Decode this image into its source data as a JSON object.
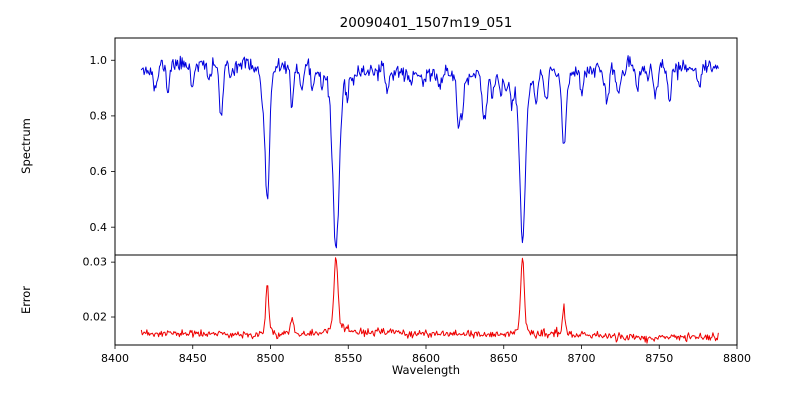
{
  "title": "20090401_1507m19_051",
  "x_axis": {
    "label": "Wavelength",
    "tick_values": [
      8400,
      8450,
      8500,
      8550,
      8600,
      8650,
      8700,
      8750,
      8800
    ],
    "tick_labels": [
      "8400",
      "8450",
      "8500",
      "8550",
      "8600",
      "8650",
      "8700",
      "8750",
      "8800"
    ],
    "lim": [
      8400,
      8800
    ]
  },
  "panels": {
    "spectrum": {
      "ylabel": "Spectrum",
      "tick_values": [
        0.4,
        0.6,
        0.8,
        1.0
      ],
      "tick_labels": [
        "0.4",
        "0.6",
        "0.8",
        "1.0"
      ],
      "ylim": [
        0.3,
        1.08
      ],
      "line_color": "#0000dd"
    },
    "error": {
      "ylabel": "Error",
      "tick_values": [
        0.02,
        0.03
      ],
      "tick_labels": [
        "0.02",
        "0.03"
      ],
      "ylim": [
        0.0149,
        0.0313
      ],
      "line_color": "#ee0000"
    }
  },
  "chart_data": [
    {
      "type": "line",
      "name": "spectrum",
      "color": "#0000dd",
      "x_range": [
        8417,
        8788
      ],
      "xlabel": "Wavelength",
      "ylabel": "Spectrum",
      "ylim": [
        0.3,
        1.08
      ],
      "continuum_level": 0.97,
      "noise_sigma": 0.013,
      "noise_seed": 11,
      "absorption_lines": [
        {
          "wavelength": 8498.0,
          "min_flux": 0.48,
          "depth": 0.49,
          "width": 1.3
        },
        {
          "wavelength": 8542.1,
          "min_flux": 0.33,
          "depth": 0.64,
          "width": 2.0
        },
        {
          "wavelength": 8662.1,
          "min_flux": 0.37,
          "depth": 0.6,
          "width": 1.8
        },
        {
          "wavelength": 8688.6,
          "min_flux": 0.75,
          "depth": 0.22,
          "width": 1.0
        }
      ],
      "weak_lines": [
        {
          "wavelength": 8434,
          "depth": 0.1,
          "width": 0.9
        },
        {
          "wavelength": 8468,
          "depth": 0.12,
          "width": 1.0
        },
        {
          "wavelength": 8514,
          "depth": 0.15,
          "width": 1.0
        },
        {
          "wavelength": 8648,
          "depth": 0.1,
          "width": 0.9
        },
        {
          "wavelength": 8717,
          "depth": 0.1,
          "width": 0.9
        },
        {
          "wavelength": 8736,
          "depth": 0.09,
          "width": 0.9
        },
        {
          "wavelength": 8757,
          "depth": 0.11,
          "width": 0.9
        }
      ],
      "random_weak_lines": {
        "count": 42,
        "depth_range": [
          0.02,
          0.1
        ],
        "width_range": [
          0.7,
          1.4
        ],
        "seed": 7
      }
    },
    {
      "type": "line",
      "name": "error",
      "color": "#ee0000",
      "x_range": [
        8417,
        8788
      ],
      "ylabel": "Error",
      "ylim": [
        0.0149,
        0.0313
      ],
      "baseline": 0.0167,
      "noise_sigma": 0.00035,
      "noise_seed": 23,
      "peaks": [
        {
          "wavelength": 8498.0,
          "value": 0.025,
          "width": 0.9
        },
        {
          "wavelength": 8514.0,
          "value": 0.0193,
          "width": 0.9
        },
        {
          "wavelength": 8542.1,
          "value": 0.029,
          "width": 1.2
        },
        {
          "wavelength": 8662.1,
          "value": 0.0295,
          "width": 1.1
        },
        {
          "wavelength": 8688.6,
          "value": 0.0213,
          "width": 0.8
        }
      ]
    }
  ]
}
